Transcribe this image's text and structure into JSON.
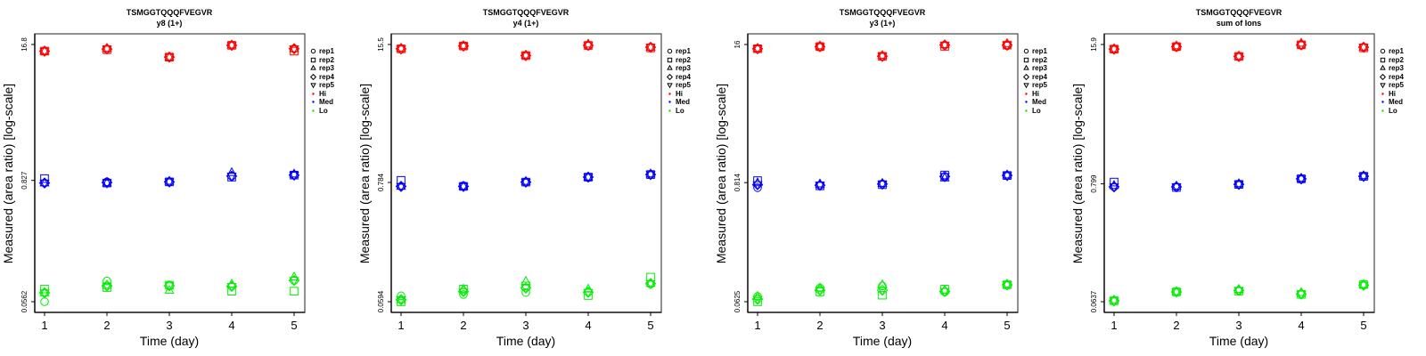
{
  "chart_data": [
    {
      "type": "scatter",
      "title": "TSMGGTQQQFVEGVR",
      "subtitle": "y8 (1+)",
      "xlabel": "Time (day)",
      "ylabel": "Measured (area ratio) [log-scale]",
      "y_scale": "log",
      "y_ticks": [
        "0.0562",
        "0.827",
        "16.8"
      ],
      "ylim": [
        0.0562,
        16.8
      ],
      "x": [
        1,
        2,
        3,
        4,
        5
      ],
      "xlim": [
        1,
        5
      ],
      "series": [
        {
          "name": "Hi",
          "color": "#ff0000",
          "reps": {
            "rep1": [
              14.5,
              15.2,
              12.7,
              16.5,
              15.3
            ],
            "rep2": [
              14.5,
              15.0,
              12.7,
              16.5,
              14.5
            ],
            "rep3": [
              14.5,
              15.4,
              12.7,
              16.6,
              15.3
            ],
            "rep4": [
              14.5,
              15.2,
              12.7,
              16.5,
              15.3
            ],
            "rep5": [
              14.5,
              15.2,
              12.7,
              16.5,
              15.3
            ]
          }
        },
        {
          "name": "Med",
          "color": "#0000ff",
          "reps": {
            "rep1": [
              0.78,
              0.8,
              0.8,
              0.91,
              0.93
            ],
            "rep2": [
              0.86,
              0.78,
              0.8,
              0.89,
              0.93
            ],
            "rep3": [
              0.78,
              0.78,
              0.81,
              0.98,
              0.95
            ],
            "rep4": [
              0.78,
              0.79,
              0.8,
              0.91,
              0.93
            ],
            "rep5": [
              0.78,
              0.78,
              0.8,
              0.91,
              0.93
            ]
          }
        },
        {
          "name": "Lo",
          "color": "#00ee00",
          "reps": {
            "rep1": [
              0.0562,
              0.089,
              0.081,
              0.079,
              0.09
            ],
            "rep2": [
              0.0745,
              0.077,
              0.081,
              0.071,
              0.071
            ],
            "rep3": [
              0.0685,
              0.081,
              0.072,
              0.083,
              0.097
            ],
            "rep4": [
              0.0685,
              0.08,
              0.08,
              0.079,
              0.09
            ],
            "rep5": [
              0.0685,
              0.08,
              0.08,
              0.079,
              0.09
            ]
          }
        }
      ],
      "legend": {
        "position": "right",
        "entries": [
          "rep1",
          "rep2",
          "rep3",
          "rep4",
          "rep5",
          "Hi",
          "Med",
          "Lo"
        ]
      }
    },
    {
      "type": "scatter",
      "title": "TSMGGTQQQFVEGVR",
      "subtitle": "y4 (1+)",
      "xlabel": "Time (day)",
      "ylabel": "Measured (area ratio) [log-scale]",
      "y_scale": "log",
      "y_ticks": [
        "0.0594",
        "0.784",
        "15.5"
      ],
      "ylim": [
        0.0594,
        15.5
      ],
      "x": [
        1,
        2,
        3,
        4,
        5
      ],
      "xlim": [
        1,
        5
      ],
      "series": [
        {
          "name": "Hi",
          "color": "#ff0000",
          "reps": {
            "rep1": [
              14.1,
              15.0,
              12.2,
              15.0,
              14.6
            ],
            "rep2": [
              14.1,
              15.0,
              12.2,
              15.2,
              14.4
            ],
            "rep3": [
              14.3,
              15.1,
              12.3,
              15.6,
              14.6
            ],
            "rep4": [
              14.1,
              15.0,
              12.2,
              15.2,
              14.6
            ],
            "rep5": [
              14.1,
              15.0,
              12.2,
              15.2,
              14.6
            ]
          }
        },
        {
          "name": "Med",
          "color": "#0000ff",
          "reps": {
            "rep1": [
              0.72,
              0.73,
              0.79,
              0.87,
              0.93
            ],
            "rep2": [
              0.82,
              0.72,
              0.79,
              0.88,
              0.93
            ],
            "rep3": [
              0.72,
              0.72,
              0.8,
              0.88,
              0.94
            ],
            "rep4": [
              0.72,
              0.72,
              0.79,
              0.88,
              0.93
            ],
            "rep5": [
              0.72,
              0.72,
              0.79,
              0.88,
              0.93
            ]
          }
        },
        {
          "name": "Lo",
          "color": "#00ee00",
          "reps": {
            "rep1": [
              0.0675,
              0.0694,
              0.0725,
              0.073,
              0.087
            ],
            "rep2": [
              0.0594,
              0.078,
              0.0835,
              0.068,
              0.101
            ],
            "rep3": [
              0.062,
              0.078,
              0.092,
              0.078,
              0.088
            ],
            "rep4": [
              0.062,
              0.074,
              0.08,
              0.073,
              0.088
            ],
            "rep5": [
              0.062,
              0.074,
              0.08,
              0.073,
              0.088
            ]
          }
        }
      ],
      "legend": {
        "position": "right",
        "entries": [
          "rep1",
          "rep2",
          "rep3",
          "rep4",
          "rep5",
          "Hi",
          "Med",
          "Lo"
        ]
      }
    },
    {
      "type": "scatter",
      "title": "TSMGGTQQQFVEGVR",
      "subtitle": "y3 (1+)",
      "xlabel": "Time (day)",
      "ylabel": "Measured (area ratio) [log-scale]",
      "y_scale": "log",
      "y_ticks": [
        "0.0625",
        "0.814",
        "16"
      ],
      "ylim": [
        0.0625,
        16
      ],
      "x": [
        1,
        2,
        3,
        4,
        5
      ],
      "xlim": [
        1,
        5
      ],
      "series": [
        {
          "name": "Hi",
          "color": "#ff0000",
          "reps": {
            "rep1": [
              14.6,
              15.1,
              12.4,
              15.8,
              15.6
            ],
            "rep2": [
              14.6,
              15.3,
              12.4,
              15.4,
              15.8
            ],
            "rep3": [
              14.7,
              15.5,
              12.6,
              15.9,
              16.3
            ],
            "rep4": [
              14.6,
              15.3,
              12.4,
              15.8,
              15.8
            ],
            "rep5": [
              14.6,
              15.3,
              12.4,
              15.8,
              15.8
            ]
          }
        },
        {
          "name": "Med",
          "color": "#0000ff",
          "reps": {
            "rep1": [
              0.73,
              0.77,
              0.79,
              0.92,
              0.95
            ],
            "rep2": [
              0.85,
              0.76,
              0.78,
              0.96,
              0.95
            ],
            "rep3": [
              0.81,
              0.79,
              0.8,
              0.9,
              0.96
            ],
            "rep4": [
              0.78,
              0.77,
              0.79,
              0.93,
              0.95
            ],
            "rep5": [
              0.78,
              0.77,
              0.79,
              0.93,
              0.95
            ]
          }
        },
        {
          "name": "Lo",
          "color": "#00ee00",
          "reps": {
            "rep1": [
              0.07,
              0.084,
              0.0877,
              0.0772,
              0.09
            ],
            "rep2": [
              0.0625,
              0.0772,
              0.072,
              0.082,
              0.09
            ],
            "rep3": [
              0.07,
              0.084,
              0.09,
              0.08,
              0.091
            ],
            "rep4": [
              0.066,
              0.08,
              0.08,
              0.078,
              0.09
            ],
            "rep5": [
              0.066,
              0.08,
              0.08,
              0.078,
              0.09
            ]
          }
        }
      ],
      "legend": {
        "position": "right",
        "entries": [
          "rep1",
          "rep2",
          "rep3",
          "rep4",
          "rep5",
          "Hi",
          "Med",
          "Lo"
        ]
      }
    },
    {
      "type": "scatter",
      "title": "TSMGGTQQQFVEGVR",
      "subtitle": "sum of Ions",
      "xlabel": "Time (day)",
      "ylabel": "Measured (area ratio) [log-scale]",
      "y_scale": "log",
      "y_ticks": [
        "0.0637",
        "0.799",
        "15.9"
      ],
      "ylim": [
        0.0637,
        15.9
      ],
      "x": [
        1,
        2,
        3,
        4,
        5
      ],
      "xlim": [
        1,
        5
      ],
      "series": [
        {
          "name": "Hi",
          "color": "#ff0000",
          "reps": {
            "rep1": [
              14.4,
              15.0,
              12.3,
              15.6,
              15.0
            ],
            "rep2": [
              14.4,
              15.2,
              12.3,
              15.8,
              14.8
            ],
            "rep3": [
              14.5,
              15.4,
              12.4,
              16.3,
              15.0
            ],
            "rep4": [
              14.4,
              15.2,
              12.3,
              15.8,
              15.0
            ],
            "rep5": [
              14.4,
              15.2,
              12.3,
              15.8,
              15.0
            ]
          }
        },
        {
          "name": "Med",
          "color": "#0000ff",
          "reps": {
            "rep1": [
              0.75,
              0.75,
              0.79,
              0.88,
              0.94
            ],
            "rep2": [
              0.83,
              0.74,
              0.79,
              0.89,
              0.94
            ],
            "rep3": [
              0.77,
              0.76,
              0.8,
              0.9,
              0.95
            ],
            "rep4": [
              0.75,
              0.75,
              0.79,
              0.89,
              0.94
            ],
            "rep5": [
              0.75,
              0.75,
              0.79,
              0.89,
              0.94
            ]
          }
        },
        {
          "name": "Lo",
          "color": "#00ee00",
          "reps": {
            "rep1": [
              0.065,
              0.0786,
              0.081,
              0.0751,
              0.091
            ],
            "rep2": [
              0.065,
              0.0786,
              0.08,
              0.0745,
              0.092
            ],
            "rep3": [
              0.066,
              0.079,
              0.083,
              0.0775,
              0.092
            ],
            "rep4": [
              0.065,
              0.0786,
              0.081,
              0.0751,
              0.091
            ],
            "rep5": [
              0.065,
              0.0786,
              0.081,
              0.0751,
              0.091
            ]
          }
        }
      ],
      "legend": {
        "position": "right",
        "entries": [
          "rep1",
          "rep2",
          "rep3",
          "rep4",
          "rep5",
          "Hi",
          "Med",
          "Lo"
        ]
      }
    }
  ]
}
